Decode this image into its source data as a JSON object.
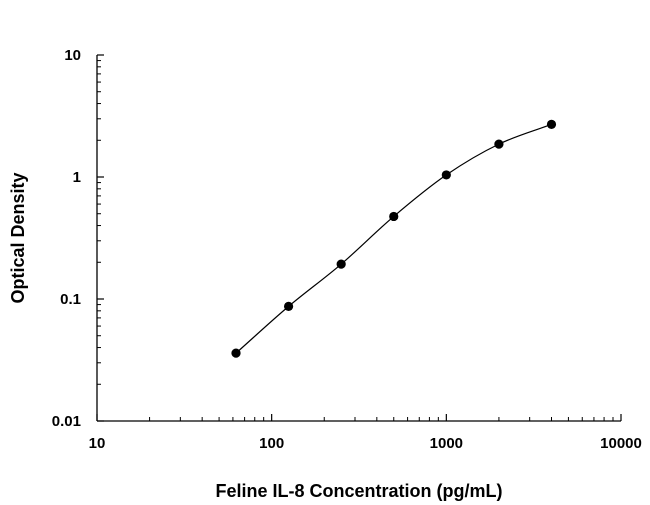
{
  "chart_data": {
    "type": "scatter",
    "title": "",
    "xlabel": "Feline IL-8 Concentration (pg/mL)",
    "ylabel": "Optical Density",
    "xscale": "log",
    "yscale": "log",
    "xlim": [
      10,
      10000
    ],
    "ylim": [
      0.01,
      10
    ],
    "x_ticks": [
      "10",
      "100",
      "1000",
      "10000"
    ],
    "y_ticks": [
      "0.01",
      "0.1",
      "1",
      "10"
    ],
    "grid": false,
    "legend": "none",
    "series": [
      {
        "x": [
          62.5,
          125,
          250,
          500,
          1000,
          2000,
          4000
        ],
        "y": [
          0.036,
          0.087,
          0.193,
          0.475,
          1.04,
          1.86,
          2.7
        ],
        "marker": "circle",
        "fit_line": true
      }
    ]
  }
}
